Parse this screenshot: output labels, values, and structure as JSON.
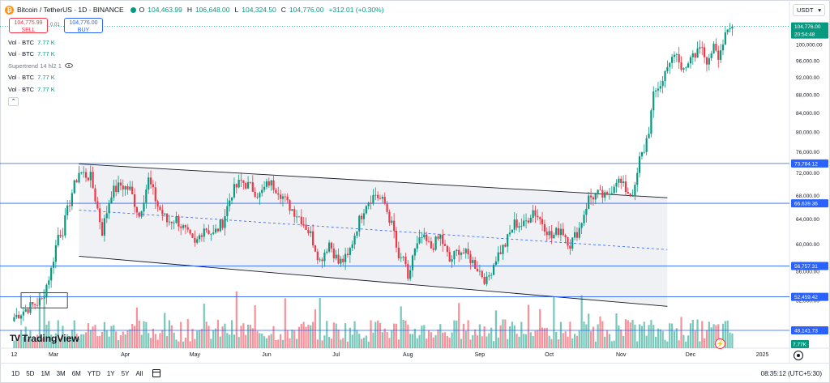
{
  "header": {
    "symbol_title": "Bitcoin / TetherUS · 1D · BINANCE",
    "o_label": "O",
    "o_value": "104,463.99",
    "h_label": "H",
    "h_value": "106,648.00",
    "l_label": "L",
    "l_value": "104,324.50",
    "c_label": "C",
    "c_value": "104,776.00",
    "change": "+312.01 (+0.30%)",
    "logo_char": "₿"
  },
  "trade": {
    "sell_price": "104,775.99",
    "sell_label": "SELL",
    "spread": "0.01",
    "buy_price": "104,776.00",
    "buy_label": "BUY"
  },
  "legend": [
    {
      "name": "Vol · BTC",
      "value": "7.77 K"
    },
    {
      "name": "Vol · BTC",
      "value": "7.77 K"
    },
    {
      "name": "Supertrend 14 hl2 1",
      "value": ""
    },
    {
      "name": "Vol · BTC",
      "value": "7.77 K"
    },
    {
      "name": "Vol · BTC",
      "value": "7.77 K"
    }
  ],
  "collapse_glyph": "⌃",
  "currency": {
    "label": "USDT",
    "caret": "▾"
  },
  "colors": {
    "up": "#089981",
    "down": "#f23645",
    "hline": "#2962ff",
    "channel_fill": "#f0f1f4"
  },
  "bottom": {
    "timeframes": [
      "1D",
      "5D",
      "1M",
      "3M",
      "6M",
      "YTD",
      "1Y",
      "5Y",
      "All"
    ],
    "clock": "08:35:12 (UTC+5:30)"
  },
  "branding": {
    "logo_mark": "TV",
    "name": "TradingView"
  },
  "chart_data": {
    "type": "candlestick",
    "title": "Bitcoin / TetherUS · 1D · BINANCE",
    "ylim": [
      46000,
      108000
    ],
    "y_scale": "log",
    "y_ticks": [
      {
        "value": 100000,
        "label": "100,000.00"
      },
      {
        "value": 96000,
        "label": "96,000.00"
      },
      {
        "value": 92000,
        "label": "92,000.00"
      },
      {
        "value": 88000,
        "label": "88,000.00"
      },
      {
        "value": 84000,
        "label": "84,000.00"
      },
      {
        "value": 80000,
        "label": "80,000.00"
      },
      {
        "value": 76000,
        "label": "76,000.00"
      },
      {
        "value": 72000,
        "label": "72,000.00"
      },
      {
        "value": 68000,
        "label": "68,000.00"
      },
      {
        "value": 64000,
        "label": "64,000.00"
      },
      {
        "value": 60000,
        "label": "60,000.00"
      },
      {
        "value": 56000,
        "label": "56,000.00"
      },
      {
        "value": 52000,
        "label": "52,000.00"
      },
      {
        "value": 48000,
        "label": "48,000.00"
      }
    ],
    "x_ticks": [
      {
        "day": 0,
        "label": "12"
      },
      {
        "day": 17,
        "label": "Mar"
      },
      {
        "day": 48,
        "label": "Apr"
      },
      {
        "day": 78,
        "label": "May"
      },
      {
        "day": 109,
        "label": "Jun"
      },
      {
        "day": 139,
        "label": "Jul"
      },
      {
        "day": 170,
        "label": "Aug"
      },
      {
        "day": 201,
        "label": "Sep"
      },
      {
        "day": 231,
        "label": "Oct"
      },
      {
        "day": 262,
        "label": "Nov"
      },
      {
        "day": 292,
        "label": "Dec"
      },
      {
        "day": 323,
        "label": "2025"
      }
    ],
    "x_range_days": [
      -4,
      334
    ],
    "price_levels": [
      {
        "value": 73784.12,
        "label": "73,784.12"
      },
      {
        "value": 66639.36,
        "label": "66,639.36"
      },
      {
        "value": 56757.31,
        "label": "56,757.31"
      },
      {
        "value": 52459.42,
        "label": "52,459.42"
      },
      {
        "value": 48141.73,
        "label": "48,141.73"
      }
    ],
    "last_price": {
      "value": 104776.0,
      "label": "104,776.00",
      "countdown": "20:54:48"
    },
    "volume_badge": "7.77K",
    "channel": {
      "upper": [
        [
          28,
          73700
        ],
        [
          282,
          67600
        ]
      ],
      "lower": [
        [
          28,
          58200
        ],
        [
          282,
          51200
        ]
      ],
      "mid": [
        [
          28,
          65500
        ],
        [
          282,
          59200
        ]
      ]
    },
    "consolidation_box": {
      "day_start": 3,
      "day_end": 23,
      "high": 53000,
      "low": 51000
    },
    "close_anchors": [
      [
        0,
        49800
      ],
      [
        6,
        51000
      ],
      [
        12,
        52000
      ],
      [
        16,
        56200
      ],
      [
        19,
        61500
      ],
      [
        21,
        62200
      ],
      [
        25,
        68500
      ],
      [
        28,
        72200
      ],
      [
        33,
        71200
      ],
      [
        38,
        62000
      ],
      [
        42,
        68500
      ],
      [
        46,
        69800
      ],
      [
        50,
        69000
      ],
      [
        54,
        64500
      ],
      [
        58,
        70800
      ],
      [
        62,
        66200
      ],
      [
        66,
        63600
      ],
      [
        70,
        64000
      ],
      [
        74,
        62000
      ],
      [
        78,
        59800
      ],
      [
        82,
        62800
      ],
      [
        86,
        61500
      ],
      [
        90,
        63500
      ],
      [
        94,
        68500
      ],
      [
        98,
        70500
      ],
      [
        102,
        69500
      ],
      [
        106,
        68000
      ],
      [
        110,
        70300
      ],
      [
        114,
        69000
      ],
      [
        118,
        66500
      ],
      [
        124,
        64000
      ],
      [
        128,
        61500
      ],
      [
        132,
        57500
      ],
      [
        136,
        60300
      ],
      [
        140,
        57200
      ],
      [
        144,
        58000
      ],
      [
        148,
        62800
      ],
      [
        152,
        66800
      ],
      [
        156,
        68200
      ],
      [
        160,
        66500
      ],
      [
        164,
        61800
      ],
      [
        166,
        57200
      ],
      [
        168,
        58200
      ],
      [
        170,
        54300
      ],
      [
        172,
        58300
      ],
      [
        176,
        61000
      ],
      [
        180,
        59500
      ],
      [
        184,
        61200
      ],
      [
        188,
        57400
      ],
      [
        192,
        59200
      ],
      [
        196,
        58200
      ],
      [
        200,
        56500
      ],
      [
        204,
        54500
      ],
      [
        208,
        58000
      ],
      [
        212,
        60000
      ],
      [
        216,
        63300
      ],
      [
        220,
        63000
      ],
      [
        224,
        65500
      ],
      [
        228,
        63500
      ],
      [
        232,
        61000
      ],
      [
        236,
        62600
      ],
      [
        240,
        60000
      ],
      [
        244,
        62500
      ],
      [
        248,
        67500
      ],
      [
        252,
        68200
      ],
      [
        256,
        67500
      ],
      [
        260,
        71000
      ],
      [
        263,
        69500
      ],
      [
        266,
        68200
      ],
      [
        268,
        69000
      ],
      [
        270,
        74500
      ],
      [
        272,
        76500
      ],
      [
        274,
        80500
      ],
      [
        276,
        87500
      ],
      [
        278,
        89800
      ],
      [
        280,
        91000
      ],
      [
        282,
        95500
      ],
      [
        284,
        96000
      ],
      [
        286,
        97500
      ],
      [
        288,
        93500
      ],
      [
        290,
        95500
      ],
      [
        292,
        97200
      ],
      [
        294,
        96000
      ],
      [
        296,
        99500
      ],
      [
        298,
        97000
      ],
      [
        300,
        95500
      ],
      [
        302,
        101000
      ],
      [
        304,
        97500
      ],
      [
        306,
        100500
      ],
      [
        308,
        103000
      ],
      [
        310,
        104776
      ]
    ]
  }
}
